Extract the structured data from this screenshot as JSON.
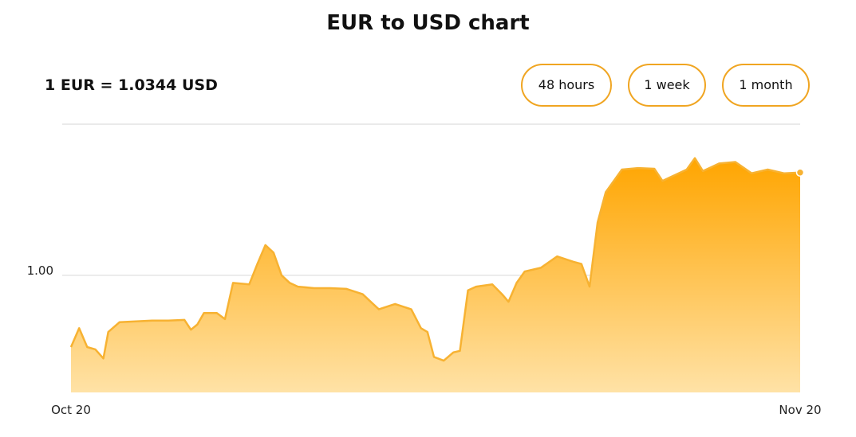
{
  "page": {
    "title": "EUR to USD chart",
    "rate_text": "1 EUR = 1.0344 USD"
  },
  "range_buttons": [
    {
      "label": "48 hours"
    },
    {
      "label": "1 week"
    },
    {
      "label": "1 month"
    }
  ],
  "colors": {
    "accent": "#f0a521",
    "area_top": "#ffa500",
    "area_bottom": "#ffe2a6",
    "line": "#f7b232",
    "grid": "#d6d6d6"
  },
  "chart_data": {
    "type": "area",
    "series": [
      {
        "values": [
          {
            "x": 0,
            "y": 0.905
          },
          {
            "x": 0.5,
            "y": 0.93
          },
          {
            "x": 1,
            "y": 0.905
          },
          {
            "x": 1.5,
            "y": 0.902
          },
          {
            "x": 2.0,
            "y": 0.89
          },
          {
            "x": 2.3,
            "y": 0.925
          },
          {
            "x": 3,
            "y": 0.938
          },
          {
            "x": 4,
            "y": 0.939
          },
          {
            "x": 5,
            "y": 0.94
          },
          {
            "x": 6,
            "y": 0.94
          },
          {
            "x": 7,
            "y": 0.941
          },
          {
            "x": 7.4,
            "y": 0.928
          },
          {
            "x": 7.8,
            "y": 0.935
          },
          {
            "x": 8.2,
            "y": 0.95
          },
          {
            "x": 9,
            "y": 0.95
          },
          {
            "x": 9.5,
            "y": 0.942
          },
          {
            "x": 10,
            "y": 0.99
          },
          {
            "x": 11,
            "y": 0.988
          },
          {
            "x": 11.5,
            "y": 1.015
          },
          {
            "x": 12,
            "y": 1.04
          },
          {
            "x": 12.5,
            "y": 1.03
          },
          {
            "x": 13,
            "y": 1.0
          },
          {
            "x": 13.5,
            "y": 0.99
          },
          {
            "x": 14,
            "y": 0.985
          },
          {
            "x": 15,
            "y": 0.983
          },
          {
            "x": 16,
            "y": 0.983
          },
          {
            "x": 17,
            "y": 0.982
          },
          {
            "x": 18,
            "y": 0.975
          },
          {
            "x": 19,
            "y": 0.955
          },
          {
            "x": 20,
            "y": 0.962
          },
          {
            "x": 21,
            "y": 0.955
          },
          {
            "x": 21.6,
            "y": 0.93
          },
          {
            "x": 22,
            "y": 0.925
          },
          {
            "x": 22.4,
            "y": 0.892
          },
          {
            "x": 23,
            "y": 0.887
          },
          {
            "x": 23.6,
            "y": 0.898
          },
          {
            "x": 24,
            "y": 0.9
          },
          {
            "x": 24.5,
            "y": 0.98
          },
          {
            "x": 25,
            "y": 0.985
          },
          {
            "x": 26,
            "y": 0.988
          },
          {
            "x": 26.6,
            "y": 0.975
          },
          {
            "x": 27,
            "y": 0.965
          },
          {
            "x": 27.5,
            "y": 0.99
          },
          {
            "x": 28,
            "y": 1.005
          },
          {
            "x": 29,
            "y": 1.01
          },
          {
            "x": 30,
            "y": 1.025
          },
          {
            "x": 31,
            "y": 1.018
          },
          {
            "x": 31.5,
            "y": 1.015
          },
          {
            "x": 32,
            "y": 0.985
          },
          {
            "x": 32.5,
            "y": 1.07
          },
          {
            "x": 33,
            "y": 1.11
          },
          {
            "x": 34,
            "y": 1.14
          },
          {
            "x": 35,
            "y": 1.142
          },
          {
            "x": 36,
            "y": 1.141
          },
          {
            "x": 36.5,
            "y": 1.125
          },
          {
            "x": 37,
            "y": 1.13
          },
          {
            "x": 38,
            "y": 1.14
          },
          {
            "x": 38.5,
            "y": 1.155
          },
          {
            "x": 39,
            "y": 1.138
          },
          {
            "x": 40,
            "y": 1.148
          },
          {
            "x": 41,
            "y": 1.15
          },
          {
            "x": 42,
            "y": 1.135
          },
          {
            "x": 43,
            "y": 1.14
          },
          {
            "x": 44,
            "y": 1.135
          },
          {
            "x": 45,
            "y": 1.136
          }
        ]
      }
    ],
    "x_tick_labels": [
      "Oct 20",
      "Nov 20"
    ],
    "y_tick_labels": [
      "1.00"
    ],
    "y_tick_values": [
      1.0
    ],
    "xlim": [
      0,
      45
    ],
    "ylim": [
      0.845,
      1.2
    ],
    "grid": true
  }
}
